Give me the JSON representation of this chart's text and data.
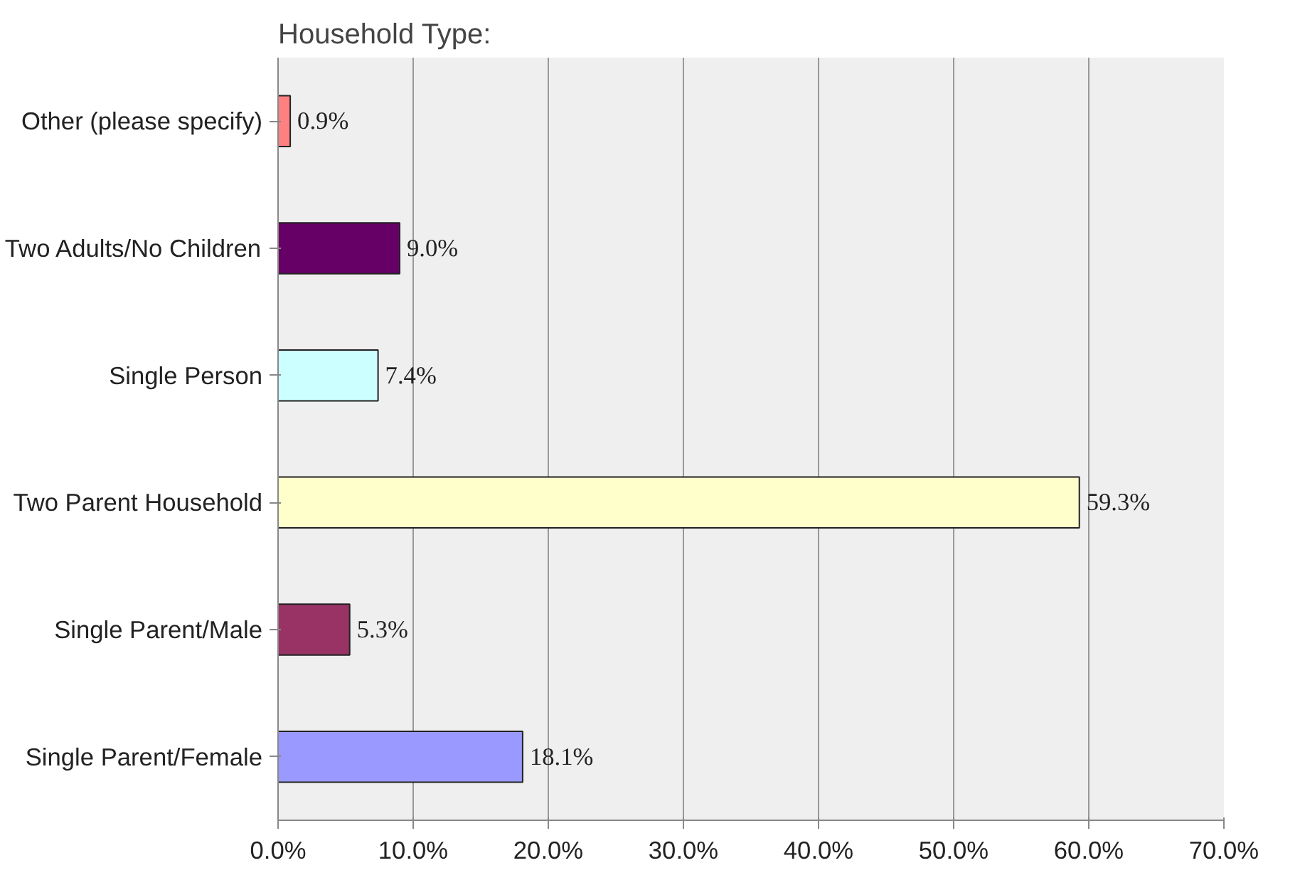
{
  "chart_data": {
    "type": "bar",
    "orientation": "horizontal",
    "title": "Household Type:",
    "categories": [
      "Other (please specify)",
      "Two Adults/No Children",
      "Single Person",
      "Two Parent Household",
      "Single Parent/Male",
      "Single Parent/Female"
    ],
    "values": [
      0.9,
      9.0,
      7.4,
      59.3,
      5.3,
      18.1
    ],
    "colors": [
      "#ff8080",
      "#660066",
      "#ccffff",
      "#ffffcc",
      "#993366",
      "#9999ff"
    ],
    "value_labels": [
      "0.9%",
      "9.0%",
      "7.4%",
      "59.3%",
      "5.3%",
      "18.1%"
    ],
    "xlim": [
      0,
      70
    ],
    "xticks": [
      {
        "value": 0,
        "label": "0.0%"
      },
      {
        "value": 10,
        "label": "10.0%"
      },
      {
        "value": 20,
        "label": "20.0%"
      },
      {
        "value": 30,
        "label": "30.0%"
      },
      {
        "value": 40,
        "label": "40.0%"
      },
      {
        "value": 50,
        "label": "50.0%"
      },
      {
        "value": 60,
        "label": "60.0%"
      },
      {
        "value": 70,
        "label": "70.0%"
      }
    ],
    "grid": "x"
  }
}
